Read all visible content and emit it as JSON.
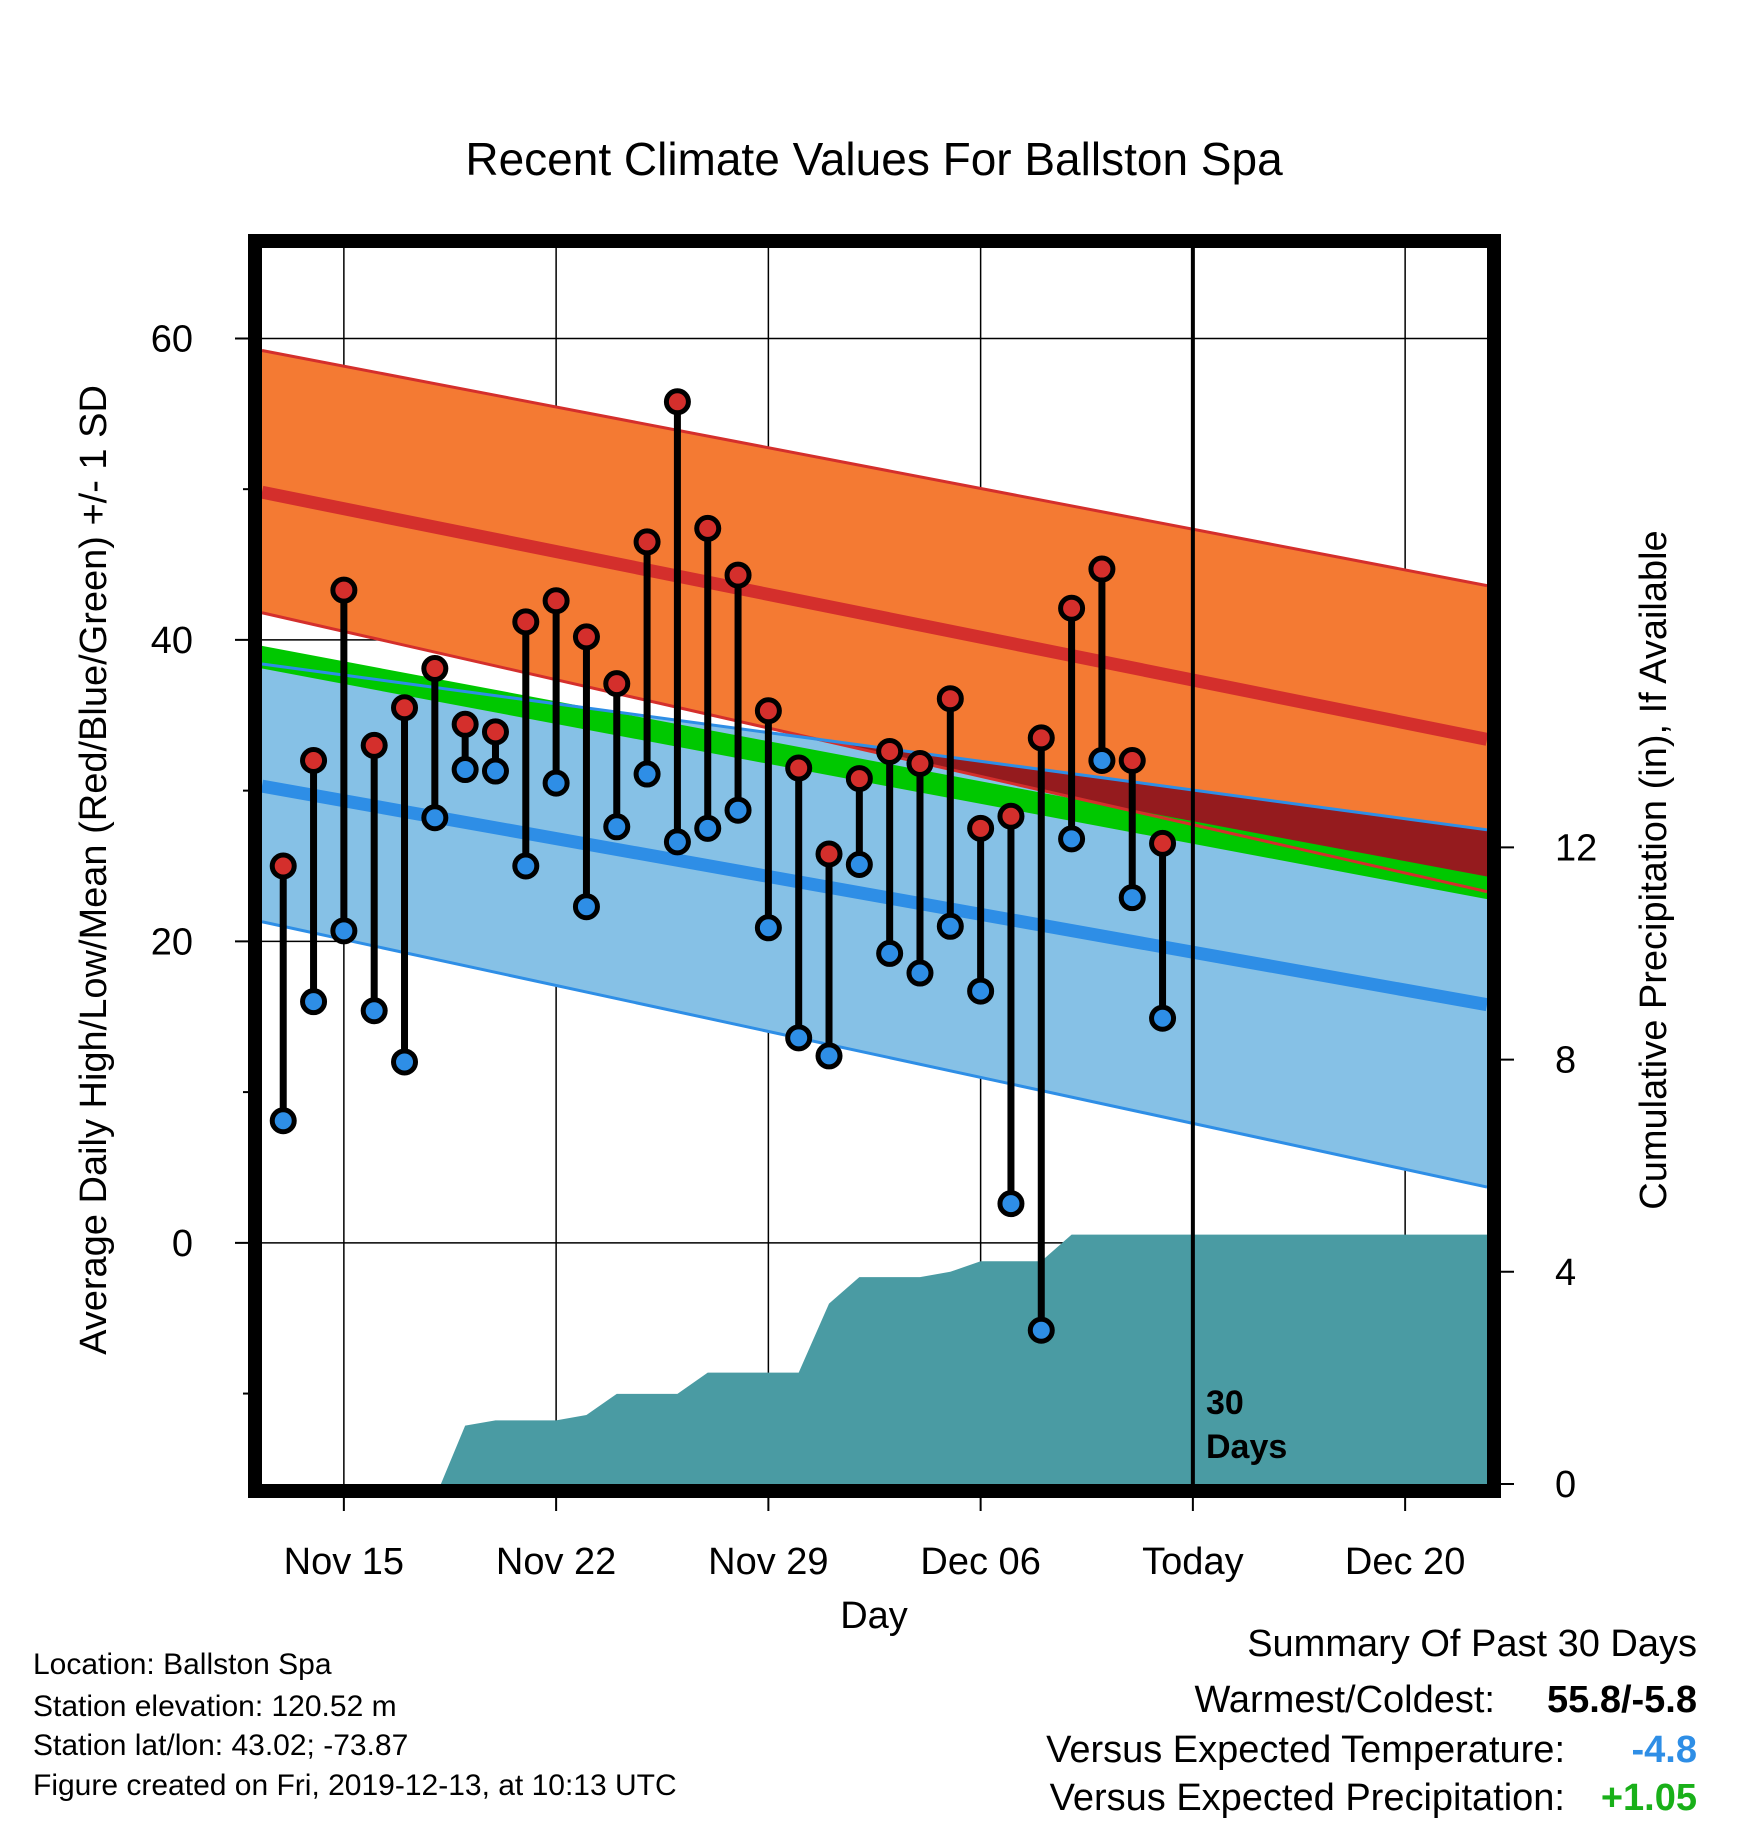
{
  "chart_data": {
    "type": "line",
    "title": "Recent Climate Values For Ballston Spa",
    "xlabel": "Day",
    "ylabel": "Average Daily High/Low/Mean (Red/Blue/Green) +/- 1 SD",
    "y2label": "Cumulative Precipitation (in), If Available",
    "x_tick_labels": [
      "Nov 15",
      "Nov 22",
      "Nov 29",
      "Dec 06",
      "Today",
      "Dec 20"
    ],
    "x_tick_days": [
      15,
      22,
      29,
      36,
      43,
      50
    ],
    "x_range_days": [
      12.3,
      52.7
    ],
    "y_ticks": [
      60,
      40,
      20,
      0
    ],
    "ylim": [
      -16,
      66
    ],
    "y2_ticks": [
      12,
      8,
      4,
      0
    ],
    "y2lim": [
      0,
      23.3
    ],
    "today_marker": {
      "day": 43,
      "label_line1": "30",
      "label_line2": "Days"
    },
    "normals": {
      "days": [
        12.3,
        52.7
      ],
      "high_mean": [
        49.8,
        33.4
      ],
      "high_upper": [
        59.2,
        43.6
      ],
      "high_lower": [
        41.8,
        23.3
      ],
      "low_mean": [
        30.3,
        15.8
      ],
      "low_upper": [
        38.4,
        27.4
      ],
      "low_lower": [
        21.3,
        3.7
      ],
      "mean_upper": [
        39.6,
        24.3
      ],
      "mean_lower": [
        38.1,
        22.8
      ]
    },
    "series": [
      {
        "name": "Daily High",
        "days": [
          13,
          14,
          15,
          16,
          17,
          18,
          19,
          20,
          21,
          22,
          23,
          24,
          25,
          26,
          27,
          28,
          29,
          30,
          31,
          32,
          33,
          34,
          35,
          36,
          37,
          38,
          39,
          40,
          41,
          42
        ],
        "values": [
          25.0,
          32.0,
          43.3,
          33.0,
          35.5,
          38.1,
          34.4,
          33.9,
          41.2,
          42.6,
          40.2,
          37.1,
          46.5,
          55.8,
          47.4,
          44.3,
          35.3,
          31.5,
          25.8,
          30.8,
          32.6,
          31.8,
          36.1,
          27.5,
          28.3,
          33.5,
          42.1,
          44.7,
          32.0,
          26.5
        ]
      },
      {
        "name": "Daily Low",
        "days": [
          13,
          14,
          15,
          16,
          17,
          18,
          19,
          20,
          21,
          22,
          23,
          24,
          25,
          26,
          27,
          28,
          29,
          30,
          31,
          32,
          33,
          34,
          35,
          36,
          37,
          38,
          39,
          40,
          41,
          42
        ],
        "values": [
          8.1,
          16.0,
          20.7,
          15.4,
          12.0,
          28.2,
          31.4,
          31.3,
          25.0,
          30.5,
          22.3,
          27.6,
          31.1,
          26.6,
          27.5,
          28.7,
          20.9,
          13.6,
          12.4,
          25.1,
          19.2,
          17.9,
          21.0,
          16.7,
          2.6,
          -5.8,
          26.8,
          32.0,
          22.9,
          14.9
        ]
      },
      {
        "name": "Cumulative Precipitation",
        "days": [
          18.2,
          19.0,
          20.0,
          22.0,
          23.0,
          24.0,
          25.0,
          26.0,
          27.0,
          28.0,
          29.0,
          30.0,
          31.0,
          32.0,
          33.0,
          34.0,
          35.0,
          36.0,
          37.0,
          38.0,
          39.0,
          40.0,
          41.0,
          42.0,
          43.0,
          52.7
        ],
        "values": [
          0,
          1.1,
          1.2,
          1.2,
          1.3,
          1.7,
          1.7,
          1.7,
          2.1,
          2.1,
          2.1,
          2.1,
          3.4,
          3.9,
          3.9,
          3.9,
          4.0,
          4.2,
          4.2,
          4.2,
          4.7,
          4.7,
          4.7,
          4.7,
          4.7,
          4.7
        ]
      }
    ],
    "colors": {
      "high_band": "#f47a33",
      "high_line": "#d42f2c",
      "low_band": "#86c1e6",
      "low_line": "#2e8ee6",
      "mean_band": "#00c800",
      "overlap_band": "#951b1e",
      "precip_fill": "#4a9ba3",
      "high_marker": "#d42f2c",
      "low_marker": "#2e8ee6"
    }
  },
  "info": {
    "location": "Location: Ballston Spa",
    "elevation": "Station elevation: 120.52 m",
    "latlon": "Station lat/lon: 43.02; -73.87",
    "created": "Figure created on Fri, 2019-12-13, at 10:13 UTC"
  },
  "summary": {
    "heading": "Summary Of Past 30 Days",
    "warmest_label": "Warmest/Coldest:",
    "warmest_value": "55.8/-5.8",
    "temp_label": "Versus Expected Temperature:",
    "temp_value": "-4.8",
    "temp_color": "#2e8ee6",
    "precip_label": "Versus Expected Precipitation:",
    "precip_value": "+1.05",
    "precip_color": "#19b019"
  }
}
